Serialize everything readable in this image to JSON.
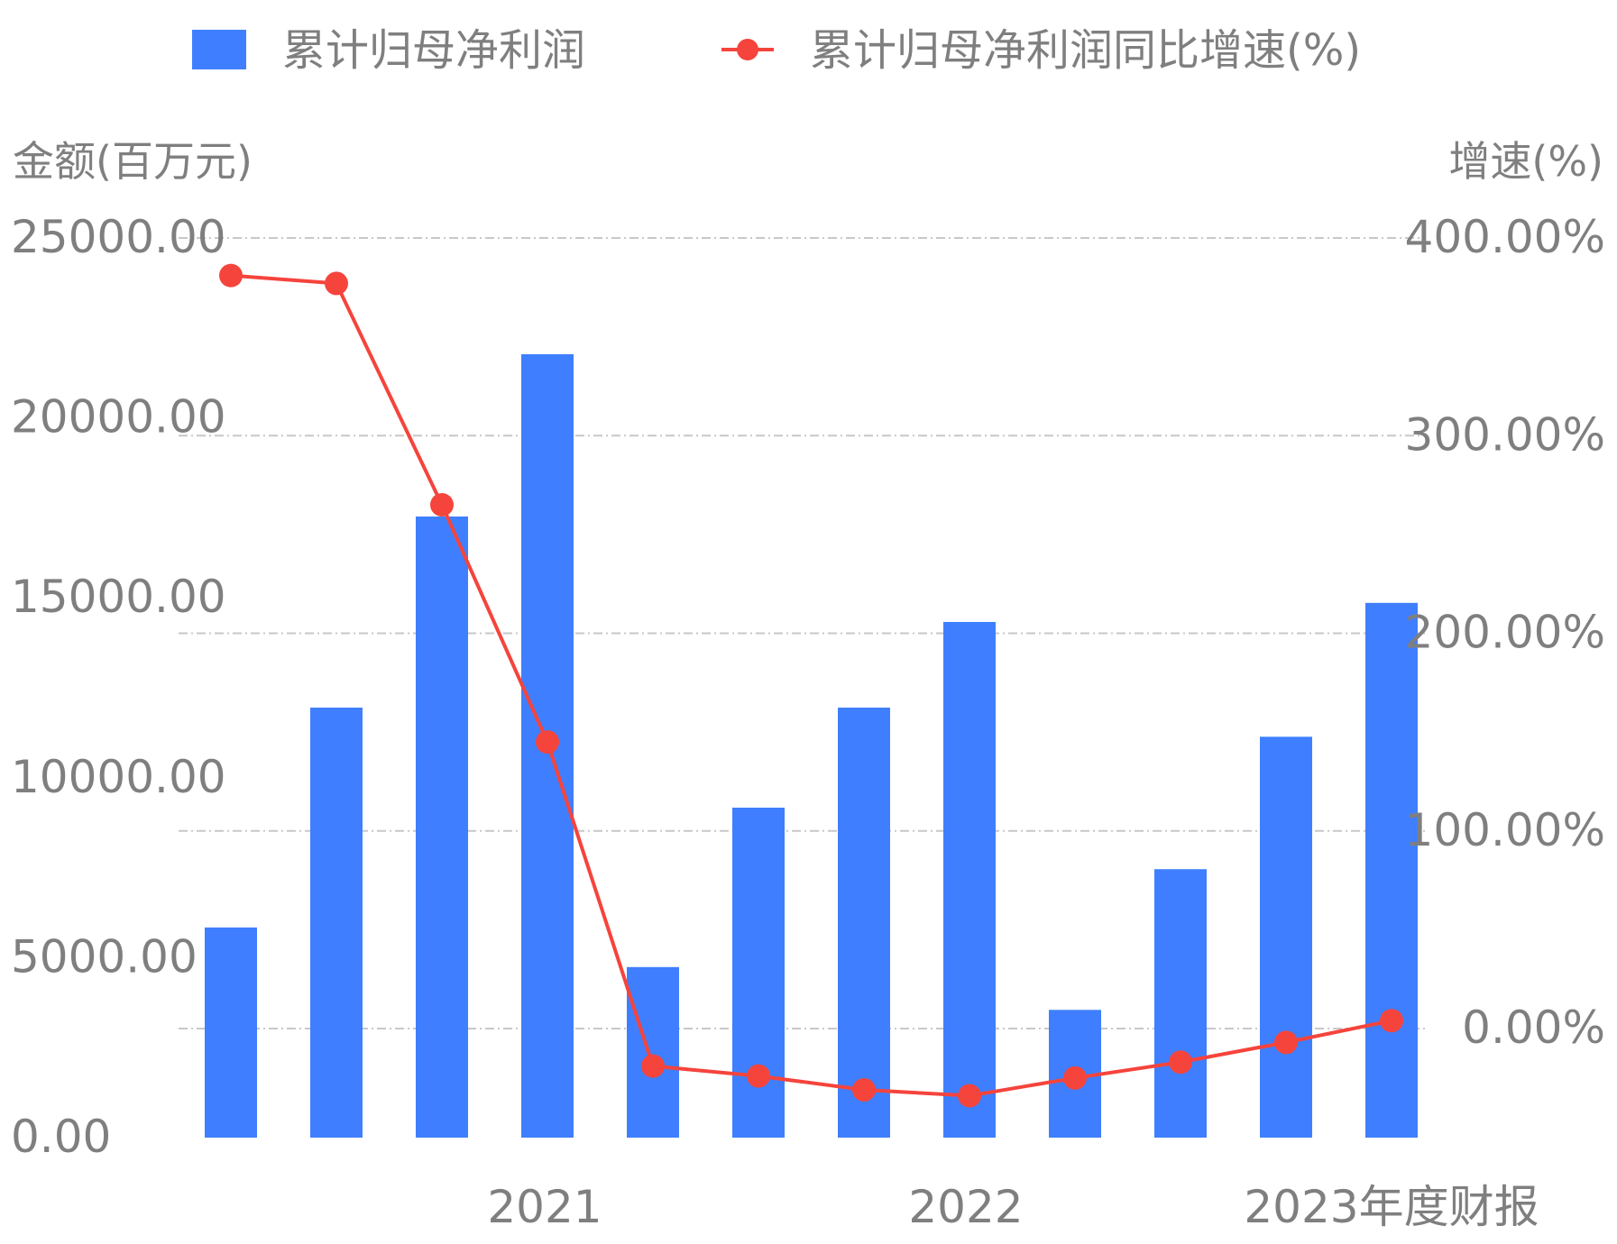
{
  "legend": {
    "bar_label": "累计归母净利润",
    "line_label": "累计归母净利润同比增速(%)"
  },
  "colors": {
    "bar": "#3f7fff",
    "line": "#f5443c",
    "grid": "#c8c8c8",
    "text": "#7f7f7f"
  },
  "chart_data": {
    "type": "bar",
    "title": "",
    "left_axis_title": "金额(百万元)",
    "right_axis_title": "增速(%)",
    "x_tick_labels": [
      "2021",
      "2022",
      "2023年度财报"
    ],
    "left_ticks": [
      "0.00",
      "5000.00",
      "10000.00",
      "15000.00",
      "20000.00",
      "25000.00"
    ],
    "right_ticks": [
      "0.00%",
      "100.00%",
      "200.00%",
      "300.00%",
      "400.00%"
    ],
    "left_ylim": [
      0,
      25000
    ],
    "right_ylim": [
      -55,
      400
    ],
    "grid": true,
    "legend_position": "top",
    "series": [
      {
        "name": "累计归母净利润",
        "type": "bar",
        "axis": "left",
        "values": [
          5840,
          11950,
          17260,
          21770,
          4740,
          9170,
          11950,
          14330,
          3550,
          7460,
          11140,
          14860
        ]
      },
      {
        "name": "累计归母净利润同比增速(%)",
        "type": "line",
        "axis": "right",
        "values": [
          381,
          377,
          265,
          145,
          -19,
          -24,
          -31,
          -34,
          -25,
          -17,
          -7,
          4
        ]
      }
    ]
  }
}
